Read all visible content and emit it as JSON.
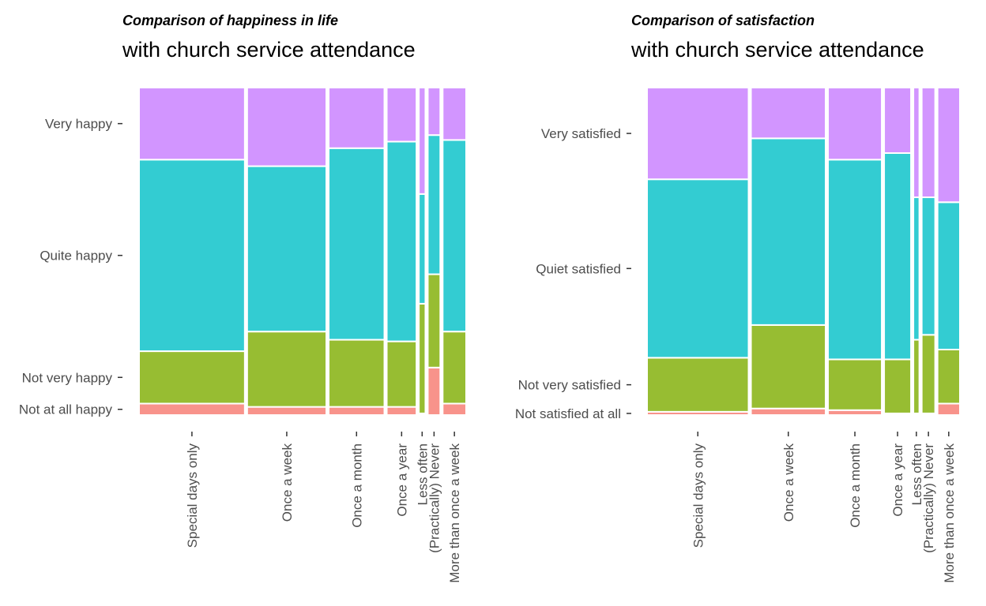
{
  "chart_data": [
    {
      "type": "mosaic",
      "title": "Comparison of happiness in life",
      "subtitle": "with church service attendance",
      "categories": [
        "Special days only",
        "Once a week",
        "Once a month",
        "Once a year",
        "Less often",
        "(Practically) Never",
        "More than once a week"
      ],
      "category_widths": [
        0.338,
        0.253,
        0.178,
        0.095,
        0.021,
        0.04,
        0.075
      ],
      "levels": [
        "Not at all happy",
        "Not very happy",
        "Quite happy",
        "Very happy"
      ],
      "level_colors": [
        "#F8938B",
        "#97BD32",
        "#33CCD2",
        "#D295FF"
      ],
      "proportions": [
        [
          0.035,
          0.16,
          0.585,
          0.22
        ],
        [
          0.025,
          0.23,
          0.505,
          0.24
        ],
        [
          0.025,
          0.205,
          0.585,
          0.185
        ],
        [
          0.025,
          0.2,
          0.61,
          0.165
        ],
        [
          0.005,
          0.335,
          0.335,
          0.325
        ],
        [
          0.145,
          0.285,
          0.425,
          0.145
        ],
        [
          0.035,
          0.22,
          0.585,
          0.16
        ]
      ],
      "y_labels": [
        "Very happy",
        "Quite happy",
        "Not very happy",
        "Not at all happy"
      ],
      "x_labels": [
        "Special days only",
        "Once a week",
        "Once a month",
        "Once a year",
        "Less often",
        "(Practically) Never",
        "More than once a week"
      ]
    },
    {
      "type": "mosaic",
      "title": "Comparison of satisfaction",
      "subtitle": "with church service attendance",
      "categories": [
        "Special days only",
        "Once a week",
        "Once a month",
        "Once a year",
        "Less often",
        "(Practically) Never",
        "More than once a week"
      ],
      "category_widths": [
        0.34,
        0.25,
        0.18,
        0.09,
        0.02,
        0.045,
        0.075
      ],
      "levels": [
        "Not satisfied at all",
        "Not very satisfied",
        "Quiet satisfied",
        "Very satisfied"
      ],
      "level_colors": [
        "#F8938B",
        "#97BD32",
        "#33CCD2",
        "#D295FF"
      ],
      "proportions": [
        [
          0.01,
          0.165,
          0.545,
          0.28
        ],
        [
          0.02,
          0.255,
          0.57,
          0.155
        ],
        [
          0.015,
          0.155,
          0.61,
          0.22
        ],
        [
          0.005,
          0.165,
          0.63,
          0.2
        ],
        [
          0.005,
          0.225,
          0.435,
          0.335
        ],
        [
          0.005,
          0.24,
          0.42,
          0.335
        ],
        [
          0.035,
          0.165,
          0.45,
          0.35
        ]
      ],
      "y_labels": [
        "Very satisfied",
        "Quiet satisfied",
        "Not very satisfied",
        "Not satisfied at all"
      ],
      "x_labels": [
        "Special days only",
        "Once a week",
        "Once a month",
        "Once a year",
        "Less often",
        "(Practically) Never",
        "More than once a week"
      ]
    }
  ]
}
